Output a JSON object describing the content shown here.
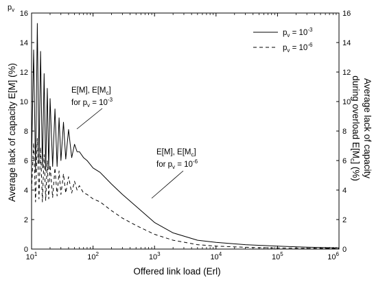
{
  "chart_data": {
    "type": "line",
    "x_scale": "log",
    "xlabel": "Offered link load (Erl)",
    "ylabel_left": "Average lack of capacity E[M] (%)",
    "ylabel_right": [
      "Average lack of capacity",
      "during overload E[M",
      "c",
      "] (%)"
    ],
    "top_left_marker": "p",
    "top_left_marker_sub": "v",
    "xlim": [
      10,
      1000000
    ],
    "ylim": [
      0,
      16
    ],
    "x_ticks": [
      {
        "base": "10",
        "exp": "1"
      },
      {
        "base": "10",
        "exp": "2"
      },
      {
        "base": "10",
        "exp": "3"
      },
      {
        "base": "10",
        "exp": "4"
      },
      {
        "base": "10",
        "exp": "5"
      },
      {
        "base": "10",
        "exp": "6"
      }
    ],
    "y_ticks": [
      "0",
      "2",
      "4",
      "6",
      "8",
      "10",
      "12",
      "14",
      "16"
    ],
    "legend": [
      {
        "style": "solid",
        "pre": "p",
        "sub": "v",
        "eq": " = 10",
        "exp": "-3"
      },
      {
        "style": "dashed",
        "pre": "p",
        "sub": "v",
        "eq": " = 10",
        "exp": "-6"
      }
    ],
    "annotations": [
      {
        "line1": [
          "E[M], E[M",
          "c",
          "]"
        ],
        "line2": [
          "for p",
          "v",
          " = 10",
          "-3"
        ]
      },
      {
        "line1": [
          "E[M], E[M",
          "c",
          "]"
        ],
        "line2": [
          "for p",
          "v",
          " = 10",
          "-6"
        ]
      }
    ],
    "series": [
      {
        "style": "solid",
        "x": [
          10,
          10.8,
          11.6,
          12.4,
          13.2,
          14,
          15,
          16,
          17,
          18,
          19,
          20,
          22,
          24,
          26,
          28,
          30,
          33,
          36,
          40,
          45,
          50,
          55,
          60,
          70,
          80,
          100,
          130,
          200,
          300,
          500,
          1000,
          2000,
          5000,
          10000,
          30000,
          100000,
          300000,
          1000000
        ],
        "y": [
          6.0,
          13.5,
          5.2,
          15.3,
          5.8,
          13.4,
          5.5,
          11.9,
          5.3,
          10.9,
          5.4,
          10.2,
          5.6,
          9.5,
          5.6,
          8.9,
          6.0,
          8.6,
          6.1,
          8.1,
          6.2,
          7.1,
          6.6,
          6.6,
          6.2,
          6.0,
          5.5,
          5.2,
          4.4,
          3.7,
          2.9,
          1.8,
          1.1,
          0.6,
          0.45,
          0.3,
          0.2,
          0.13,
          0.08
        ]
      },
      {
        "style": "dashed",
        "x": [
          10,
          10.8,
          11.6,
          12.4,
          13.2,
          14,
          15,
          16,
          17,
          18,
          19,
          20,
          22,
          24,
          26,
          28,
          30,
          33,
          36,
          40,
          45,
          50,
          55,
          60,
          70,
          80,
          100,
          130,
          200,
          300,
          500,
          1000,
          2000,
          5000,
          10000,
          30000,
          100000,
          300000,
          1000000
        ],
        "y": [
          4.0,
          7.2,
          3.2,
          7.5,
          3.4,
          6.9,
          3.2,
          6.4,
          3.3,
          6.0,
          3.4,
          5.7,
          3.5,
          5.5,
          3.6,
          5.3,
          3.7,
          5.1,
          3.8,
          4.9,
          3.8,
          4.6,
          4.0,
          4.3,
          3.8,
          3.7,
          3.4,
          3.2,
          2.6,
          2.1,
          1.6,
          1.0,
          0.6,
          0.3,
          0.2,
          0.12,
          0.07,
          0.05,
          0.04
        ]
      }
    ]
  }
}
